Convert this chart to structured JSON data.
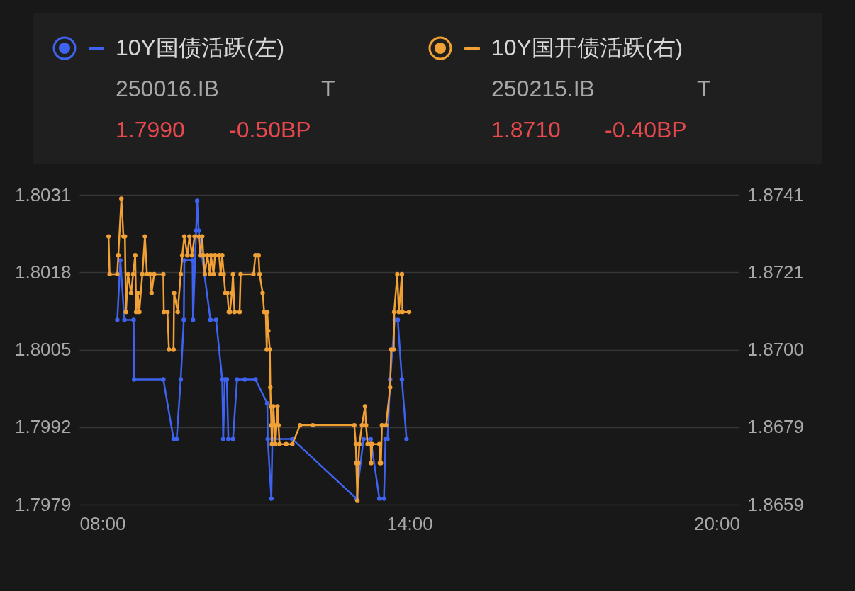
{
  "chart_data": {
    "type": "line",
    "legend": "top",
    "marker": "circle",
    "line_style": "solid",
    "grid": "y",
    "xlim": [
      7.55,
      20.43
    ],
    "xticks": [
      {
        "value": 8,
        "label": "08:00"
      },
      {
        "value": 14,
        "label": "14:00"
      },
      {
        "value": 20,
        "label": "20:00"
      }
    ],
    "ylim": [
      1.7979,
      1.8031
    ],
    "yticks": [
      1.7979,
      1.7992,
      1.8005,
      1.8018,
      1.8031
    ],
    "y2lim": [
      1.8659,
      1.8741
    ],
    "y2ticks": [
      1.8659,
      {
        "value": 1.86795,
        "label": "1.8679"
      },
      {
        "value": 1.87,
        "label": "1.8700"
      },
      {
        "value": 1.87205,
        "label": "1.8721"
      },
      1.8741
    ],
    "annotations": [
      "250016.IB",
      "T",
      "1.7990",
      "-0.50BP",
      "250215.IB",
      "T",
      "1.8710",
      "-0.40BP"
    ],
    "series": [
      {
        "name": "10Y国债活跃(左)",
        "color": "#3d63f0",
        "axis": "y",
        "x": [
          8.29,
          8.35,
          8.43,
          8.61,
          8.62,
          9.19,
          9.39,
          9.45,
          9.53,
          9.59,
          9.6,
          9.76,
          9.77,
          9.83,
          9.85,
          9.88,
          10.11,
          10.22,
          10.34,
          10.36,
          10.39,
          10.43,
          10.46,
          10.55,
          10.63,
          10.78,
          10.99,
          11.22,
          11.23,
          11.3,
          11.32,
          11.71,
          12.96,
          13.1,
          13.24,
          13.41,
          13.5,
          13.53,
          13.57,
          13.62,
          13.71,
          13.77,
          13.85,
          13.94
        ],
        "values": [
          1.801,
          1.802,
          1.801,
          1.801,
          1.8,
          1.8,
          1.799,
          1.799,
          1.8,
          1.801,
          1.802,
          1.802,
          1.801,
          1.8025,
          1.803,
          1.8025,
          1.801,
          1.801,
          1.8,
          1.799,
          1.8,
          1.8,
          1.799,
          1.799,
          1.8,
          1.8,
          1.8,
          1.7996,
          1.799,
          1.798,
          1.799,
          1.799,
          1.798,
          1.799,
          1.799,
          1.798,
          1.798,
          1.799,
          1.799,
          1.8,
          1.801,
          1.801,
          1.8,
          1.799
        ]
      },
      {
        "name": "10Y国开债活跃(右)",
        "color": "#f0a035",
        "axis": "y2",
        "x": [
          8.12,
          8.14,
          8.29,
          8.31,
          8.37,
          8.41,
          8.44,
          8.46,
          8.5,
          8.56,
          8.6,
          8.64,
          8.66,
          8.69,
          8.72,
          8.78,
          8.83,
          8.87,
          8.93,
          8.96,
          9.01,
          9.19,
          9.2,
          9.27,
          9.3,
          9.39,
          9.4,
          9.47,
          9.53,
          9.56,
          9.6,
          9.66,
          9.7,
          9.75,
          9.8,
          9.88,
          9.91,
          9.95,
          9.97,
          10.0,
          10.05,
          10.1,
          10.12,
          10.17,
          10.2,
          10.28,
          10.31,
          10.34,
          10.37,
          10.4,
          10.44,
          10.47,
          10.49,
          10.53,
          10.55,
          10.58,
          10.68,
          10.7,
          10.95,
          10.99,
          11.05,
          11.07,
          11.13,
          11.16,
          11.19,
          11.21,
          11.22,
          11.24,
          11.27,
          11.28,
          11.29,
          11.3,
          11.31,
          11.34,
          11.36,
          11.38,
          11.42,
          11.44,
          11.46,
          11.59,
          11.71,
          11.86,
          12.11,
          12.92,
          12.95,
          12.96,
          12.98,
          13.0,
          13.02,
          13.07,
          13.13,
          13.15,
          13.18,
          13.24,
          13.25,
          13.27,
          13.41,
          13.42,
          13.44,
          13.46,
          13.54,
          13.62,
          13.64,
          13.69,
          13.7,
          13.76,
          13.79,
          13.85,
          13.86,
          13.99
        ],
        "values": [
          1.873,
          1.872,
          1.872,
          1.8725,
          1.874,
          1.873,
          1.873,
          1.871,
          1.872,
          1.8715,
          1.872,
          1.8725,
          1.871,
          1.8715,
          1.871,
          1.872,
          1.873,
          1.872,
          1.872,
          1.8715,
          1.872,
          1.872,
          1.871,
          1.871,
          1.87,
          1.87,
          1.8715,
          1.871,
          1.872,
          1.8725,
          1.873,
          1.8725,
          1.873,
          1.8725,
          1.873,
          1.873,
          1.8725,
          1.873,
          1.8725,
          1.872,
          1.8725,
          1.872,
          1.8725,
          1.872,
          1.8725,
          1.8725,
          1.872,
          1.8725,
          1.872,
          1.8715,
          1.8715,
          1.871,
          1.871,
          1.8715,
          1.872,
          1.871,
          1.871,
          1.872,
          1.872,
          1.8725,
          1.8725,
          1.872,
          1.8715,
          1.871,
          1.871,
          1.87,
          1.871,
          1.8705,
          1.87,
          1.869,
          1.8685,
          1.868,
          1.8675,
          1.8685,
          1.868,
          1.8675,
          1.8685,
          1.868,
          1.8675,
          1.8675,
          1.8675,
          1.868,
          1.868,
          1.868,
          1.8675,
          1.867,
          1.866,
          1.867,
          1.8675,
          1.868,
          1.8685,
          1.868,
          1.8675,
          1.8675,
          1.867,
          1.8675,
          1.8675,
          1.867,
          1.867,
          1.868,
          1.868,
          1.869,
          1.87,
          1.87,
          1.871,
          1.872,
          1.871,
          1.872,
          1.871,
          1.871
        ]
      }
    ]
  }
}
